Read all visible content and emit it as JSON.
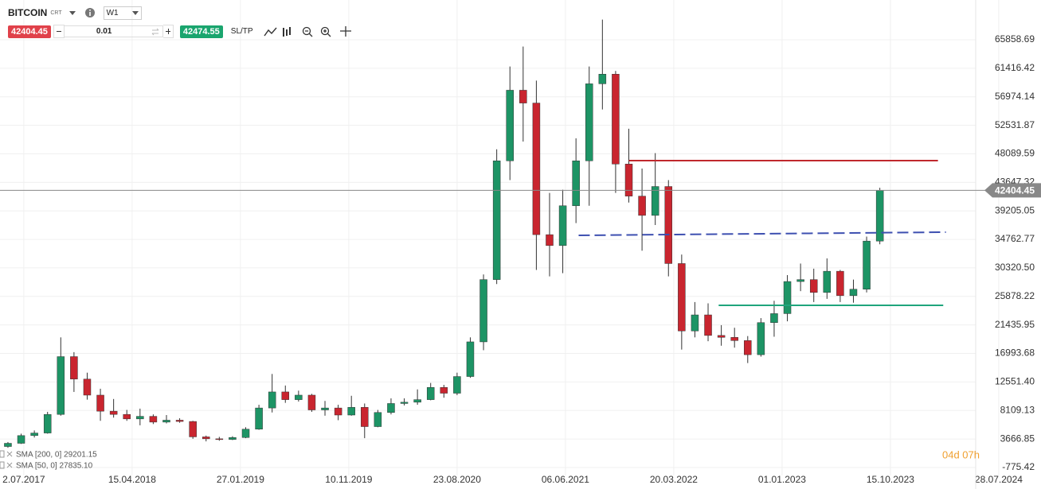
{
  "toolbar": {
    "symbol": "BITCOIN",
    "symbol_tag": "CRT",
    "interval": "W1",
    "sell_price": "42404.45",
    "volume": "0.01",
    "buy_price": "42474.55",
    "sltp": "SL/TP"
  },
  "chart_data": {
    "type": "candlestick",
    "up_color": "#1d9465",
    "down_color": "#c9252f",
    "x": [
      3,
      8,
      13,
      18,
      23,
      28,
      33,
      38,
      43,
      48,
      53,
      58,
      63,
      68,
      73,
      78,
      83,
      88,
      93,
      98,
      103,
      108,
      113,
      118,
      123,
      128,
      133,
      138,
      143,
      148,
      153,
      158,
      163,
      168,
      173,
      178,
      183,
      188,
      193,
      198,
      203,
      208,
      213,
      218,
      223,
      228,
      233,
      238,
      243,
      248,
      253,
      258,
      263,
      268,
      273,
      278,
      283,
      288,
      293,
      298,
      303,
      308,
      313,
      318,
      323,
      328,
      333
    ],
    "open": [
      2500,
      3000,
      4200,
      4600,
      7500,
      16500,
      13000,
      10500,
      8000,
      7500,
      6800,
      7200,
      6300,
      6600,
      6400,
      4000,
      3700,
      3600,
      3900,
      5200,
      8500,
      11000,
      9800,
      10500,
      8200,
      8500,
      7400,
      8600,
      5600,
      7800,
      9200,
      9400,
      9800,
      11700,
      10800,
      13400,
      18800,
      28500,
      47000,
      58000,
      56000,
      35500,
      33800,
      40000,
      47000,
      59000,
      60500,
      46500,
      41500,
      38500,
      43000,
      31000,
      20500,
      23000,
      19800,
      19500,
      19000,
      16800,
      21800,
      23200,
      28200,
      28500,
      26500,
      29800,
      26000,
      27000,
      34500
    ],
    "high": [
      3200,
      4500,
      5000,
      7900,
      19500,
      17200,
      14000,
      11500,
      9900,
      8200,
      8400,
      7500,
      7400,
      6900,
      6500,
      4200,
      4000,
      4100,
      5500,
      9000,
      13800,
      12000,
      11200,
      10700,
      9600,
      9000,
      10400,
      9200,
      8200,
      10000,
      10000,
      11400,
      12400,
      12100,
      14000,
      19500,
      29300,
      48800,
      61700,
      64800,
      59500,
      42000,
      42500,
      50500,
      61700,
      69000,
      61000,
      52000,
      45800,
      48200,
      44000,
      32400,
      25000,
      24800,
      21400,
      21000,
      19700,
      22500,
      25200,
      29200,
      31000,
      30200,
      31800,
      30000,
      28500,
      35200,
      42800
    ],
    "low": [
      2300,
      2900,
      3900,
      4500,
      7300,
      11000,
      9800,
      6500,
      7000,
      6500,
      5800,
      6000,
      6100,
      6200,
      3700,
      3300,
      3400,
      3500,
      3800,
      5100,
      7800,
      9300,
      9500,
      7900,
      7300,
      6600,
      7300,
      3800,
      5500,
      7500,
      8900,
      9000,
      9700,
      10100,
      10500,
      13200,
      17500,
      27800,
      44000,
      50000,
      30000,
      29000,
      29500,
      37300,
      40000,
      55000,
      42000,
      40500,
      33000,
      37000,
      29000,
      17600,
      19500,
      18900,
      18200,
      17900,
      15500,
      16500,
      19600,
      22000,
      26700,
      25000,
      25500,
      25000,
      24900,
      26500,
      34000
    ],
    "close": [
      3000,
      4200,
      4600,
      7500,
      16500,
      13000,
      10500,
      8000,
      7500,
      6800,
      7200,
      6300,
      6600,
      6400,
      4000,
      3700,
      3600,
      3900,
      5200,
      8500,
      11000,
      9800,
      10500,
      8200,
      8500,
      7400,
      8600,
      5600,
      7800,
      9200,
      9400,
      9800,
      11700,
      10800,
      13400,
      18800,
      28500,
      47000,
      58000,
      56000,
      35500,
      33800,
      40000,
      47000,
      59000,
      60500,
      46500,
      41500,
      38500,
      43000,
      31000,
      20500,
      23000,
      19800,
      19500,
      19000,
      16800,
      21800,
      23200,
      28200,
      28500,
      26500,
      29800,
      26000,
      27000,
      34500,
      42404.45
    ],
    "last_price": 42404.45,
    "levels": [
      {
        "color": "#c0282d",
        "dashed": false,
        "x": [
          238,
          355
        ],
        "values": [
          47030,
          47030
        ]
      },
      {
        "color": "#3d4fb0",
        "dashed": true,
        "x": [
          219,
          358
        ],
        "values": [
          35390,
          35890
        ]
      },
      {
        "color": "#1fa57c",
        "dashed": false,
        "x": [
          272,
          357
        ],
        "values": [
          24490,
          24490
        ]
      }
    ],
    "indicators": [
      "SMA [200, 0] 29201.15",
      "SMA [50, 0] 27835.10"
    ],
    "countdown": "04d 07h",
    "xlim": [
      0,
      394
    ],
    "xticks": [
      {
        "value": 9,
        "label": "2.07.2017"
      },
      {
        "value": 50,
        "label": "15.04.2018"
      },
      {
        "value": 91,
        "label": "27.01.2019"
      },
      {
        "value": 132,
        "label": "10.11.2019"
      },
      {
        "value": 173,
        "label": "23.08.2020"
      },
      {
        "value": 214,
        "label": "06.06.2021"
      },
      {
        "value": 255,
        "label": "20.03.2022"
      },
      {
        "value": 296,
        "label": "01.01.2023"
      },
      {
        "value": 337,
        "label": "15.10.2023"
      },
      {
        "value": 378,
        "label": "28.07.2024"
      }
    ],
    "ylim": [
      -2014,
      69574
    ],
    "yticks": [
      65858.69,
      61416.42,
      56974.14,
      52531.87,
      48089.59,
      43647.32,
      39205.05,
      34762.77,
      {
        "value": 30320.5,
        "label": "30320.50"
      },
      25878.22,
      21435.95,
      16993.68,
      {
        "value": 12551.4,
        "label": "12551.40"
      },
      8109.13,
      3666.85,
      -775.42
    ],
    "grid": true
  }
}
